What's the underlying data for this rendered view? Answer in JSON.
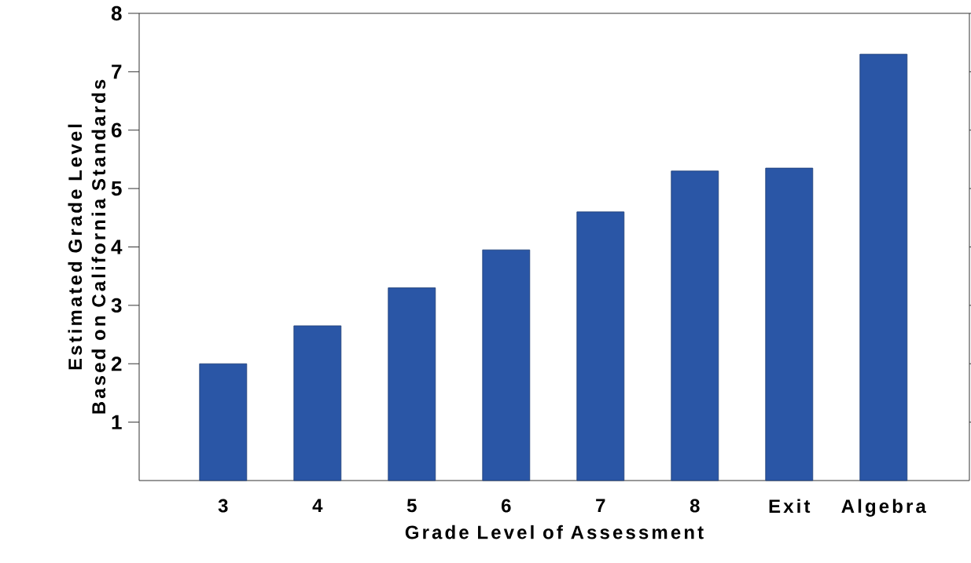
{
  "chart_data": {
    "type": "bar",
    "xlabel": "Grade Level of Assessment",
    "ylabel": "Estimated Grade Level Based on California Standards",
    "categories": [
      "3",
      "4",
      "5",
      "6",
      "7",
      "8",
      "Exit",
      "Algebra"
    ],
    "values": [
      2.0,
      2.65,
      3.3,
      3.95,
      4.6,
      5.3,
      5.35,
      7.3
    ],
    "color": "#2a56a6",
    "ylim": [
      0,
      8
    ],
    "yticks": [
      1,
      2,
      3,
      4,
      5,
      6,
      7,
      8
    ]
  }
}
